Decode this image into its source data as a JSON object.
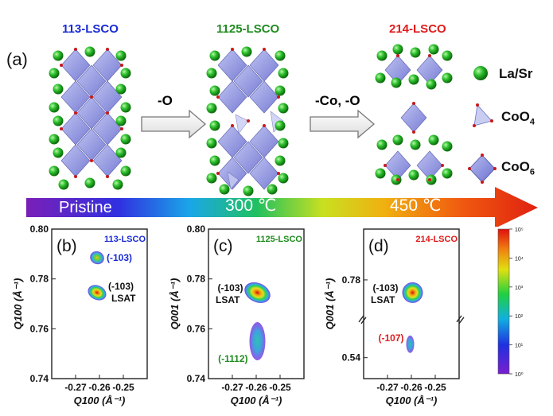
{
  "top": {
    "panel_label": "(a)",
    "titles": [
      {
        "text": "113-LSCO",
        "color": "#1a2bd6"
      },
      {
        "text": "1125-LSCO",
        "color": "#1f8c1f"
      },
      {
        "text": "214-LSCO",
        "color": "#e01b1b"
      }
    ],
    "step_labels": [
      "-O",
      "-Co, -O"
    ],
    "legend": {
      "la_sr": "La/Sr",
      "coo4_main": "CoO",
      "coo4_sub": "4",
      "coo6_main": "CoO",
      "coo6_sub": "6"
    },
    "temperature_bar": {
      "labels": [
        "Pristine",
        "300 ℃",
        "450 ℃"
      ]
    }
  },
  "chart_data": [
    {
      "type": "heatmap",
      "panel": "(b)",
      "title": "113-LSCO",
      "title_color": "#1a2bd6",
      "xlabel": "Q100 (Å⁻¹)",
      "ylabel": "Q100 (Å⁻¹)",
      "xlim": [
        -0.28,
        -0.24
      ],
      "ylim": [
        0.74,
        0.8
      ],
      "xticks": [
        "-0.27",
        "-0.26",
        "-0.25"
      ],
      "yticks": [
        "0.74",
        "0.76",
        "0.78",
        "0.80"
      ],
      "peaks": [
        {
          "label": "(-103)",
          "color": "#1a2bd6",
          "x": -0.261,
          "y": 0.7885
        },
        {
          "label": "(-103) LSAT",
          "color": "#111111",
          "x": -0.261,
          "y": 0.7745
        }
      ]
    },
    {
      "type": "heatmap",
      "panel": "(c)",
      "title": "1125-LSCO",
      "title_color": "#1f8c1f",
      "xlabel": "Q100 (Å⁻¹)",
      "ylabel": "Q001 (Å⁻¹)",
      "xlim": [
        -0.28,
        -0.24
      ],
      "ylim": [
        0.74,
        0.8
      ],
      "xticks": [
        "-0.27",
        "-0.26",
        "-0.25"
      ],
      "yticks": [
        "0.74",
        "0.76",
        "0.78",
        "0.80"
      ],
      "peaks": [
        {
          "label": "(-103) LSAT",
          "color": "#111111",
          "x": -0.2595,
          "y": 0.7745
        },
        {
          "label": "(-1112)",
          "color": "#1f8c1f",
          "x": -0.2595,
          "y": 0.755
        }
      ]
    },
    {
      "type": "heatmap",
      "panel": "(d)",
      "title": "214-LSCO",
      "title_color": "#e01b1b",
      "xlabel": "Q100 (Å⁻¹)",
      "ylabel": "Q001 (Å⁻¹)",
      "xlim": [
        -0.28,
        -0.24
      ],
      "yticks": [
        "0.54",
        "0.78"
      ],
      "axis_break": true,
      "xticks": [
        "-0.27",
        "-0.26",
        "-0.25"
      ],
      "peaks": [
        {
          "label": "(-103) LSAT",
          "color": "#111111",
          "x": -0.2595,
          "y": 0.775
        },
        {
          "label": "(-107)",
          "color": "#e01b1b",
          "x": -0.2605,
          "y": 0.545
        }
      ],
      "colorbar": {
        "scale": "log",
        "range": [
          1,
          100000
        ],
        "tick_labels": [
          "10⁰",
          "10¹",
          "10²",
          "10³",
          "10⁴",
          "10⁵"
        ]
      }
    }
  ]
}
